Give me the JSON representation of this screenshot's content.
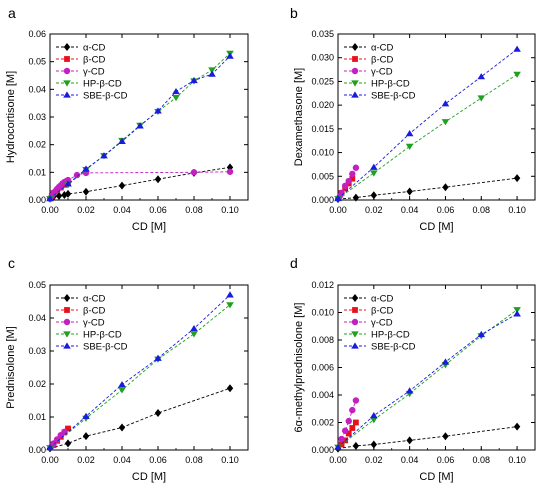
{
  "chart_data": [
    {
      "panel": "a",
      "type": "scatter",
      "xlabel": "CD [M]",
      "ylabel": "Hydrocortisone [M]",
      "xlim": [
        0,
        0.11
      ],
      "ylim": [
        0,
        0.06
      ],
      "xticks": [
        "0.00",
        "0.02",
        "0.04",
        "0.06",
        "0.08",
        "0.10"
      ],
      "yticks": [
        "0.00",
        "0.01",
        "0.02",
        "0.03",
        "0.04",
        "0.05",
        "0.06"
      ],
      "legend_position": "top-left",
      "series": [
        {
          "name": "α-CD",
          "marker": "diamond",
          "color": "#000000",
          "x": [
            0,
            0.002,
            0.005,
            0.008,
            0.01,
            0.02,
            0.04,
            0.06,
            0.08,
            0.1
          ],
          "y": [
            0.0005,
            0.0012,
            0.0015,
            0.0018,
            0.0022,
            0.003,
            0.0052,
            0.0075,
            0.0098,
            0.0118
          ]
        },
        {
          "name": "β-CD",
          "marker": "square",
          "color": "#e8101a",
          "x": [
            0.001,
            0.002,
            0.004,
            0.006,
            0.008,
            0.01
          ],
          "y": [
            0.0015,
            0.0025,
            0.0035,
            0.0045,
            0.0055,
            0.0065
          ]
        },
        {
          "name": "γ-CD",
          "marker": "circle",
          "color": "#c31fc3",
          "x": [
            0,
            0.001,
            0.002,
            0.003,
            0.004,
            0.005,
            0.006,
            0.007,
            0.008,
            0.009,
            0.01,
            0.015,
            0.02,
            0.08,
            0.1
          ],
          "y": [
            0.0005,
            0.0015,
            0.0025,
            0.0032,
            0.004,
            0.0047,
            0.0053,
            0.006,
            0.0065,
            0.0068,
            0.0072,
            0.009,
            0.0098,
            0.01,
            0.0102
          ]
        },
        {
          "name": "HP-β-CD",
          "marker": "triangle-down",
          "color": "#1fa11f",
          "x": [
            0,
            0.01,
            0.02,
            0.03,
            0.04,
            0.05,
            0.06,
            0.07,
            0.08,
            0.09,
            0.1
          ],
          "y": [
            0.0005,
            0.0055,
            0.011,
            0.016,
            0.0215,
            0.027,
            0.032,
            0.037,
            0.043,
            0.047,
            0.053
          ]
        },
        {
          "name": "SBE-β-CD",
          "marker": "triangle-up",
          "color": "#1a1ae0",
          "x": [
            0,
            0.01,
            0.02,
            0.03,
            0.04,
            0.05,
            0.06,
            0.07,
            0.08,
            0.09,
            0.1
          ],
          "y": [
            0.0005,
            0.0058,
            0.0112,
            0.016,
            0.0212,
            0.0268,
            0.0322,
            0.0392,
            0.0432,
            0.0455,
            0.052
          ]
        }
      ]
    },
    {
      "panel": "b",
      "type": "scatter",
      "xlabel": "CD [M]",
      "ylabel": "Dexamethasone [M]",
      "xlim": [
        0,
        0.11
      ],
      "ylim": [
        0,
        0.035
      ],
      "xticks": [
        "0.00",
        "0.02",
        "0.04",
        "0.06",
        "0.08",
        "0.10"
      ],
      "yticks": [
        "0.000",
        "0.005",
        "0.010",
        "0.015",
        "0.020",
        "0.025",
        "0.030",
        "0.035"
      ],
      "legend_position": "top-left",
      "series": [
        {
          "name": "α-CD",
          "marker": "diamond",
          "color": "#000000",
          "x": [
            0,
            0.01,
            0.02,
            0.04,
            0.06,
            0.1
          ],
          "y": [
            0.0002,
            0.0005,
            0.001,
            0.0018,
            0.0027,
            0.0046
          ]
        },
        {
          "name": "β-CD",
          "marker": "square",
          "color": "#e8101a",
          "x": [
            0.002,
            0.004,
            0.006,
            0.008
          ],
          "y": [
            0.0015,
            0.0025,
            0.0035,
            0.0045
          ]
        },
        {
          "name": "γ-CD",
          "marker": "circle",
          "color": "#c31fc3",
          "x": [
            0.001,
            0.002,
            0.004,
            0.006,
            0.008,
            0.01
          ],
          "y": [
            0.0008,
            0.0015,
            0.003,
            0.004,
            0.0055,
            0.0068
          ]
        },
        {
          "name": "HP-β-CD",
          "marker": "triangle-down",
          "color": "#1fa11f",
          "x": [
            0,
            0.02,
            0.04,
            0.06,
            0.08,
            0.1
          ],
          "y": [
            0.0003,
            0.0057,
            0.0113,
            0.0165,
            0.0215,
            0.0265
          ]
        },
        {
          "name": "SBE-β-CD",
          "marker": "triangle-up",
          "color": "#1a1ae0",
          "x": [
            0,
            0.02,
            0.04,
            0.06,
            0.08,
            0.1
          ],
          "y": [
            0.0003,
            0.0069,
            0.014,
            0.0203,
            0.026,
            0.0318
          ]
        }
      ]
    },
    {
      "panel": "c",
      "type": "scatter",
      "xlabel": "CD [M]",
      "ylabel": "Prednisolone [M]",
      "xlim": [
        0,
        0.11
      ],
      "ylim": [
        0,
        0.05
      ],
      "xticks": [
        "0.00",
        "0.02",
        "0.04",
        "0.06",
        "0.08",
        "0.10"
      ],
      "yticks": [
        "0.00",
        "0.01",
        "0.02",
        "0.03",
        "0.04",
        "0.05"
      ],
      "legend_position": "top-left",
      "series": [
        {
          "name": "α-CD",
          "marker": "diamond",
          "color": "#000000",
          "x": [
            0,
            0.01,
            0.02,
            0.04,
            0.06,
            0.1
          ],
          "y": [
            0.0005,
            0.002,
            0.0042,
            0.0068,
            0.0112,
            0.0187
          ]
        },
        {
          "name": "β-CD",
          "marker": "square",
          "color": "#e8101a",
          "x": [
            0.002,
            0.004,
            0.006,
            0.008,
            0.01
          ],
          "y": [
            0.0015,
            0.0028,
            0.004,
            0.0053,
            0.0065
          ]
        },
        {
          "name": "γ-CD",
          "marker": "circle",
          "color": "#c31fc3",
          "x": [
            0.001,
            0.002,
            0.004,
            0.006,
            0.008
          ],
          "y": [
            0.0012,
            0.002,
            0.0032,
            0.0045,
            0.0055
          ]
        },
        {
          "name": "HP-β-CD",
          "marker": "triangle-down",
          "color": "#1fa11f",
          "x": [
            0,
            0.02,
            0.04,
            0.06,
            0.08,
            0.1
          ],
          "y": [
            0.0007,
            0.0096,
            0.0182,
            0.0275,
            0.0352,
            0.044
          ]
        },
        {
          "name": "SBE-β-CD",
          "marker": "triangle-up",
          "color": "#1a1ae0",
          "x": [
            0,
            0.02,
            0.04,
            0.06,
            0.08,
            0.1
          ],
          "y": [
            0.0007,
            0.0102,
            0.0198,
            0.0278,
            0.0368,
            0.047
          ]
        }
      ]
    },
    {
      "panel": "d",
      "type": "scatter",
      "xlabel": "CD [M]",
      "ylabel": "6α-methylprednisolone [M]",
      "xlim": [
        0,
        0.11
      ],
      "ylim": [
        0,
        0.012
      ],
      "xticks": [
        "0.00",
        "0.02",
        "0.04",
        "0.06",
        "0.08",
        "0.10"
      ],
      "yticks": [
        "0.000",
        "0.002",
        "0.004",
        "0.006",
        "0.008",
        "0.010",
        "0.012"
      ],
      "legend_position": "top-left",
      "series": [
        {
          "name": "α-CD",
          "marker": "diamond",
          "color": "#000000",
          "x": [
            0,
            0.01,
            0.02,
            0.04,
            0.06,
            0.1
          ],
          "y": [
            0.0001,
            0.0003,
            0.0004,
            0.0007,
            0.001,
            0.0017
          ]
        },
        {
          "name": "β-CD",
          "marker": "square",
          "color": "#e8101a",
          "x": [
            0.002,
            0.004,
            0.006,
            0.008,
            0.01
          ],
          "y": [
            0.0004,
            0.0007,
            0.0012,
            0.0016,
            0.002
          ]
        },
        {
          "name": "γ-CD",
          "marker": "circle",
          "color": "#c31fc3",
          "x": [
            0.002,
            0.004,
            0.006,
            0.008,
            0.01
          ],
          "y": [
            0.0008,
            0.0014,
            0.0021,
            0.0029,
            0.0036
          ]
        },
        {
          "name": "HP-β-CD",
          "marker": "triangle-down",
          "color": "#1fa11f",
          "x": [
            0,
            0.02,
            0.04,
            0.06,
            0.08,
            0.1
          ],
          "y": [
            0.0002,
            0.0022,
            0.0041,
            0.0062,
            0.0083,
            0.0102
          ]
        },
        {
          "name": "SBE-β-CD",
          "marker": "triangle-up",
          "color": "#1a1ae0",
          "x": [
            0,
            0.02,
            0.04,
            0.06,
            0.08,
            0.1
          ],
          "y": [
            0.0002,
            0.0025,
            0.0043,
            0.0064,
            0.0084,
            0.0099
          ]
        }
      ]
    }
  ]
}
